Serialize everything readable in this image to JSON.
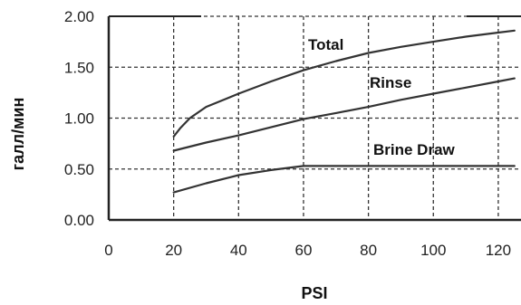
{
  "chart_data": {
    "type": "line",
    "title": "",
    "xlabel": "PSI",
    "ylabel": "галл/мин",
    "xlim": [
      0,
      127
    ],
    "ylim": [
      0,
      2.0
    ],
    "x_ticks": [
      "0",
      "20",
      "40",
      "60",
      "80",
      "100",
      "120"
    ],
    "y_ticks": [
      "0.00",
      "0.50",
      "1.00",
      "1.50",
      "2.00"
    ],
    "grid": true,
    "legend": "none",
    "series": [
      {
        "name": "Total",
        "x": [
          20,
          22,
          25,
          30,
          40,
          50,
          60,
          70,
          80,
          90,
          100,
          110,
          120,
          125
        ],
        "y": [
          0.82,
          0.9,
          1.0,
          1.11,
          1.24,
          1.36,
          1.47,
          1.56,
          1.64,
          1.7,
          1.75,
          1.8,
          1.84,
          1.86
        ]
      },
      {
        "name": "Rinse",
        "x": [
          20,
          30,
          40,
          50,
          60,
          70,
          80,
          90,
          100,
          110,
          120,
          125
        ],
        "y": [
          0.68,
          0.76,
          0.83,
          0.91,
          0.99,
          1.05,
          1.11,
          1.18,
          1.24,
          1.3,
          1.36,
          1.39
        ]
      },
      {
        "name": "Brine Draw",
        "x": [
          20,
          30,
          40,
          50,
          55,
          60,
          80,
          100,
          125
        ],
        "y": [
          0.27,
          0.36,
          0.44,
          0.49,
          0.51,
          0.53,
          0.53,
          0.53,
          0.53
        ]
      }
    ]
  }
}
